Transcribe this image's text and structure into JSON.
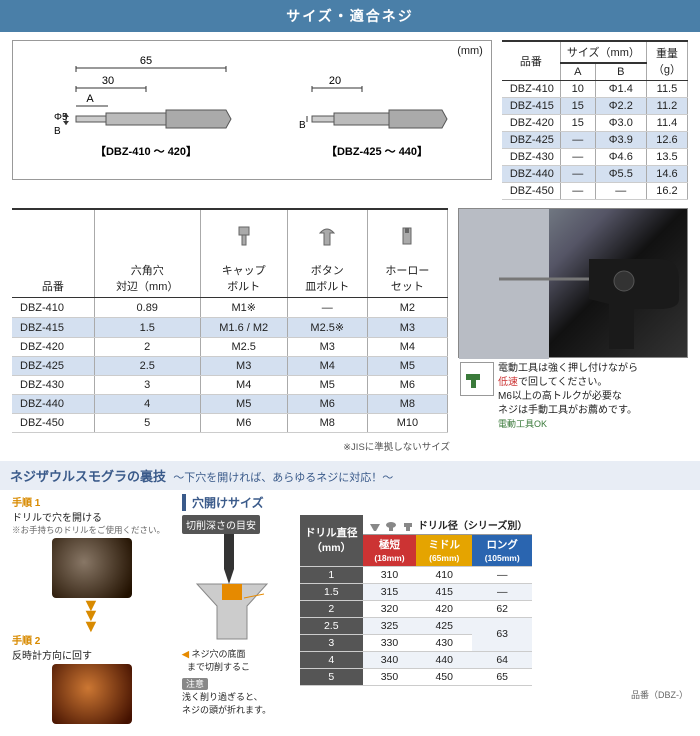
{
  "header": {
    "title": "サイズ・適合ネジ"
  },
  "diagram": {
    "unit_label": "(mm)",
    "dim_65": "65",
    "dim_30": "30",
    "dim_20": "20",
    "dim_A": "A",
    "dim_B": "B",
    "dim_phi5": "Φ5",
    "label_left": "【DBZ-410 ～ 420】",
    "label_right": "【DBZ-425 ～ 440】"
  },
  "spec_table": {
    "headers": {
      "part": "品番",
      "size": "サイズ（mm）",
      "A": "A",
      "B": "B",
      "weight": "重量\n（g）"
    },
    "rows": [
      {
        "part": "DBZ-410",
        "A": "10",
        "B": "Φ1.4",
        "w": "11.5",
        "alt": false
      },
      {
        "part": "DBZ-415",
        "A": "15",
        "B": "Φ2.2",
        "w": "11.2",
        "alt": true
      },
      {
        "part": "DBZ-420",
        "A": "15",
        "B": "Φ3.0",
        "w": "11.4",
        "alt": false
      },
      {
        "part": "DBZ-425",
        "A": "—",
        "B": "Φ3.9",
        "w": "12.6",
        "alt": true
      },
      {
        "part": "DBZ-430",
        "A": "—",
        "B": "Φ4.6",
        "w": "13.5",
        "alt": false
      },
      {
        "part": "DBZ-440",
        "A": "—",
        "B": "Φ5.5",
        "w": "14.6",
        "alt": true
      },
      {
        "part": "DBZ-450",
        "A": "—",
        "B": "—",
        "w": "16.2",
        "alt": false
      }
    ]
  },
  "compat_table": {
    "headers": {
      "part": "品番",
      "hex": "六角穴\n対辺（mm）",
      "cap": "キャップ\nボルト",
      "button": "ボタン\n皿ボルト",
      "hollow": "ホーロー\nセット"
    },
    "rows": [
      {
        "part": "DBZ-410",
        "hex": "0.89",
        "cap": "M1※",
        "btn": "—",
        "hol": "M2",
        "alt": false
      },
      {
        "part": "DBZ-415",
        "hex": "1.5",
        "cap": "M1.6 / M2",
        "btn": "M2.5※",
        "hol": "M3",
        "alt": true
      },
      {
        "part": "DBZ-420",
        "hex": "2",
        "cap": "M2.5",
        "btn": "M3",
        "hol": "M4",
        "alt": false
      },
      {
        "part": "DBZ-425",
        "hex": "2.5",
        "cap": "M3",
        "btn": "M4",
        "hol": "M5",
        "alt": true
      },
      {
        "part": "DBZ-430",
        "hex": "3",
        "cap": "M4",
        "btn": "M5",
        "hol": "M6",
        "alt": false
      },
      {
        "part": "DBZ-440",
        "hex": "4",
        "cap": "M5",
        "btn": "M6",
        "hol": "M8",
        "alt": true
      },
      {
        "part": "DBZ-450",
        "hex": "5",
        "cap": "M6",
        "btn": "M8",
        "hol": "M10",
        "alt": false
      }
    ],
    "footnote": "※JISに準拠しないサイズ"
  },
  "tool_note": {
    "icon_label": "電動工具OK",
    "line1": "電動工具は強く押し付けながら",
    "line2_red": "低速",
    "line2_rest": "で回してください。",
    "line3": "M6以上の高トルクが必要な",
    "line4": "ネジは手動工具がお薦めです。"
  },
  "section3": {
    "title_main": "ネジザウルスモグラの裏技",
    "title_sub": "～下穴を開ければ、あらゆるネジに対応！～",
    "step1_label": "手順 1",
    "step1_text": "ドリルで穴を開ける",
    "step1_note": "※お手持ちのドリルをご使用ください。",
    "step2_label": "手順 2",
    "step2_text": "反時計方向に回す",
    "drill_title": "穴開けサイズ",
    "depth_caption": "切削深さの目安",
    "depth_note_title": "注意",
    "depth_note1": "ネジ穴の底面",
    "depth_note2": "まで切削するこ",
    "depth_warn": "浅く削り過ぎると、\nネジの頭が折れます。"
  },
  "drill_table": {
    "top_label": "ドリル径（シリーズ別）",
    "col_dia": "ドリル直径\n（mm）",
    "col_short": "極短",
    "col_short_sub": "(18mm)",
    "col_mid": "ミドル",
    "col_mid_sub": "(65mm)",
    "col_long": "ロング",
    "col_long_sub": "(105mm)",
    "rows": [
      {
        "d": "1",
        "s": "310",
        "m": "410",
        "l": "—",
        "alt": false
      },
      {
        "d": "1.5",
        "s": "315",
        "m": "415",
        "l": "—",
        "alt": true
      },
      {
        "d": "2",
        "s": "320",
        "m": "420",
        "l": "62",
        "alt": false,
        "lspan": false
      },
      {
        "d": "2.5",
        "s": "325",
        "m": "425",
        "l": "63",
        "alt": true,
        "lrow2": true
      },
      {
        "d": "3",
        "s": "330",
        "m": "430",
        "l": "63",
        "alt": false,
        "lskip": true
      },
      {
        "d": "4",
        "s": "340",
        "m": "440",
        "l": "64",
        "alt": true
      },
      {
        "d": "5",
        "s": "350",
        "m": "450",
        "l": "65",
        "alt": false
      }
    ],
    "footer": "品番（DBZ-）"
  },
  "colors": {
    "header_bg": "#4a7fa8",
    "alt_row": "#d4e0f0",
    "accent": "#3a5a8a",
    "orange": "#d88a00",
    "red": "#c33",
    "short": "#c33",
    "mid": "#e5a400",
    "long": "#2a65b0"
  }
}
